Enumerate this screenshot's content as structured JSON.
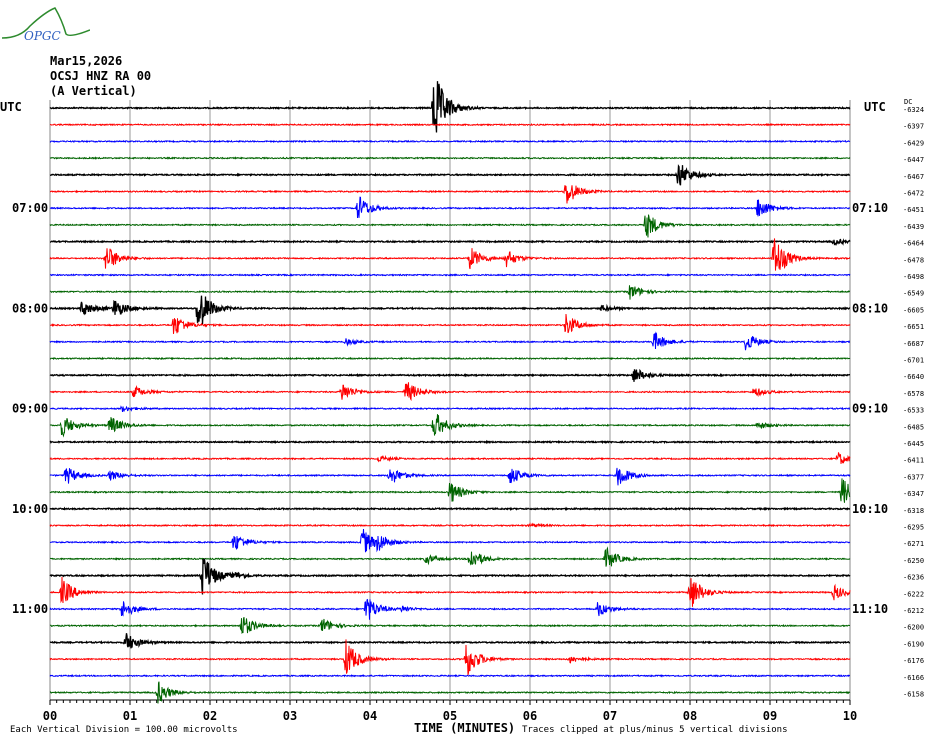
{
  "logo_text": "OPGC",
  "header": {
    "date": "Mar15,2026",
    "station": "OCSJ HNZ RA 00",
    "component": "(A Vertical)"
  },
  "utc_left": "UTC",
  "utc_right": "UTC",
  "dc_label": "DC",
  "footer": {
    "scale": "Each Vertical Division =  100.00 microvolts",
    "xlabel": "TIME (MINUTES)",
    "clip": "Traces clipped at plus/minus 5 vertical divisions"
  },
  "chart_data": {
    "type": "line",
    "title": "OCSJ HNZ RA 00 helicorder",
    "xlabel": "TIME (MINUTES)",
    "xlim": [
      0,
      10
    ],
    "x_ticks": [
      "00",
      "01",
      "02",
      "03",
      "04",
      "05",
      "06",
      "07",
      "08",
      "09",
      "10"
    ],
    "minutes_per_row": 10,
    "colors": [
      "#000000",
      "#ff0000",
      "#0000ff",
      "#006400"
    ],
    "left_labels": [
      {
        "row": 6,
        "text": "07:00"
      },
      {
        "row": 12,
        "text": "08:00"
      },
      {
        "row": 18,
        "text": "09:00"
      },
      {
        "row": 24,
        "text": "10:00"
      },
      {
        "row": 30,
        "text": "11:00"
      }
    ],
    "right_labels": [
      {
        "row": 6,
        "text": "07:10"
      },
      {
        "row": 12,
        "text": "08:10"
      },
      {
        "row": 18,
        "text": "09:10"
      },
      {
        "row": 24,
        "text": "10:10"
      },
      {
        "row": 30,
        "text": "11:10"
      }
    ],
    "dc_values": [
      "-6324",
      "-6397",
      "-6429",
      "-6447",
      "-6467",
      "-6472",
      "-6451",
      "-6439",
      "-6464",
      "-6478",
      "-6498",
      "-6549",
      "-6605",
      "-6651",
      "-6687",
      "-6701",
      "-6640",
      "-6578",
      "-6533",
      "-6485",
      "-6445",
      "-6411",
      "-6377",
      "-6347",
      "-6318",
      "-6295",
      "-6271",
      "-6250",
      "-6236",
      "-6222",
      "-6212",
      "-6200",
      "-6190",
      "-6176",
      "-6166",
      "-6158"
    ],
    "events_minute_amplitude": [
      [
        [
          4.8,
          40
        ]
      ],
      [],
      [],
      [],
      [
        [
          7.85,
          15
        ]
      ],
      [
        [
          6.45,
          15
        ]
      ],
      [
        [
          3.85,
          14
        ],
        [
          8.85,
          12
        ]
      ],
      [
        [
          7.45,
          15
        ]
      ],
      [
        [
          9.8,
          3
        ]
      ],
      [
        [
          0.7,
          15
        ],
        [
          5.25,
          12
        ],
        [
          5.7,
          9
        ],
        [
          9.05,
          25
        ]
      ],
      [],
      [
        [
          7.25,
          8
        ]
      ],
      [
        [
          0.4,
          8
        ],
        [
          0.8,
          10
        ],
        [
          1.85,
          25
        ],
        [
          6.9,
          3
        ]
      ],
      [
        [
          1.55,
          12
        ],
        [
          6.45,
          12
        ]
      ],
      [
        [
          7.55,
          10
        ],
        [
          8.7,
          10
        ],
        [
          3.7,
          3
        ]
      ],
      [],
      [
        [
          7.3,
          8
        ]
      ],
      [
        [
          1.05,
          6
        ],
        [
          3.65,
          10
        ],
        [
          4.45,
          12
        ],
        [
          8.8,
          5
        ]
      ],
      [
        [
          0.9,
          3
        ]
      ],
      [
        [
          0.15,
          12
        ],
        [
          0.75,
          10
        ],
        [
          4.8,
          15
        ],
        [
          8.85,
          4
        ]
      ],
      [],
      [
        [
          9.85,
          7
        ],
        [
          4.1,
          3
        ]
      ],
      [
        [
          0.2,
          10
        ],
        [
          0.75,
          5
        ],
        [
          4.25,
          10
        ],
        [
          5.75,
          10
        ],
        [
          7.1,
          12
        ]
      ],
      [
        [
          5.0,
          12
        ],
        [
          9.9,
          15
        ]
      ],
      [],
      [
        [
          6.0,
          2
        ]
      ],
      [
        [
          2.3,
          10
        ],
        [
          3.9,
          15
        ],
        [
          4.1,
          8
        ]
      ],
      [
        [
          4.7,
          5
        ],
        [
          5.25,
          12
        ],
        [
          6.95,
          12
        ]
      ],
      [
        [
          1.9,
          25
        ],
        [
          2.3,
          3
        ]
      ],
      [
        [
          0.15,
          15
        ],
        [
          8.0,
          20
        ],
        [
          9.8,
          8
        ]
      ],
      [
        [
          0.9,
          10
        ],
        [
          3.95,
          15
        ],
        [
          6.85,
          8
        ],
        [
          4.4,
          3
        ]
      ],
      [
        [
          2.4,
          12
        ],
        [
          3.4,
          8
        ]
      ],
      [
        [
          0.95,
          10
        ]
      ],
      [
        [
          3.7,
          20
        ],
        [
          5.2,
          20
        ],
        [
          6.5,
          4
        ]
      ],
      [],
      [
        [
          1.35,
          12
        ]
      ]
    ]
  }
}
